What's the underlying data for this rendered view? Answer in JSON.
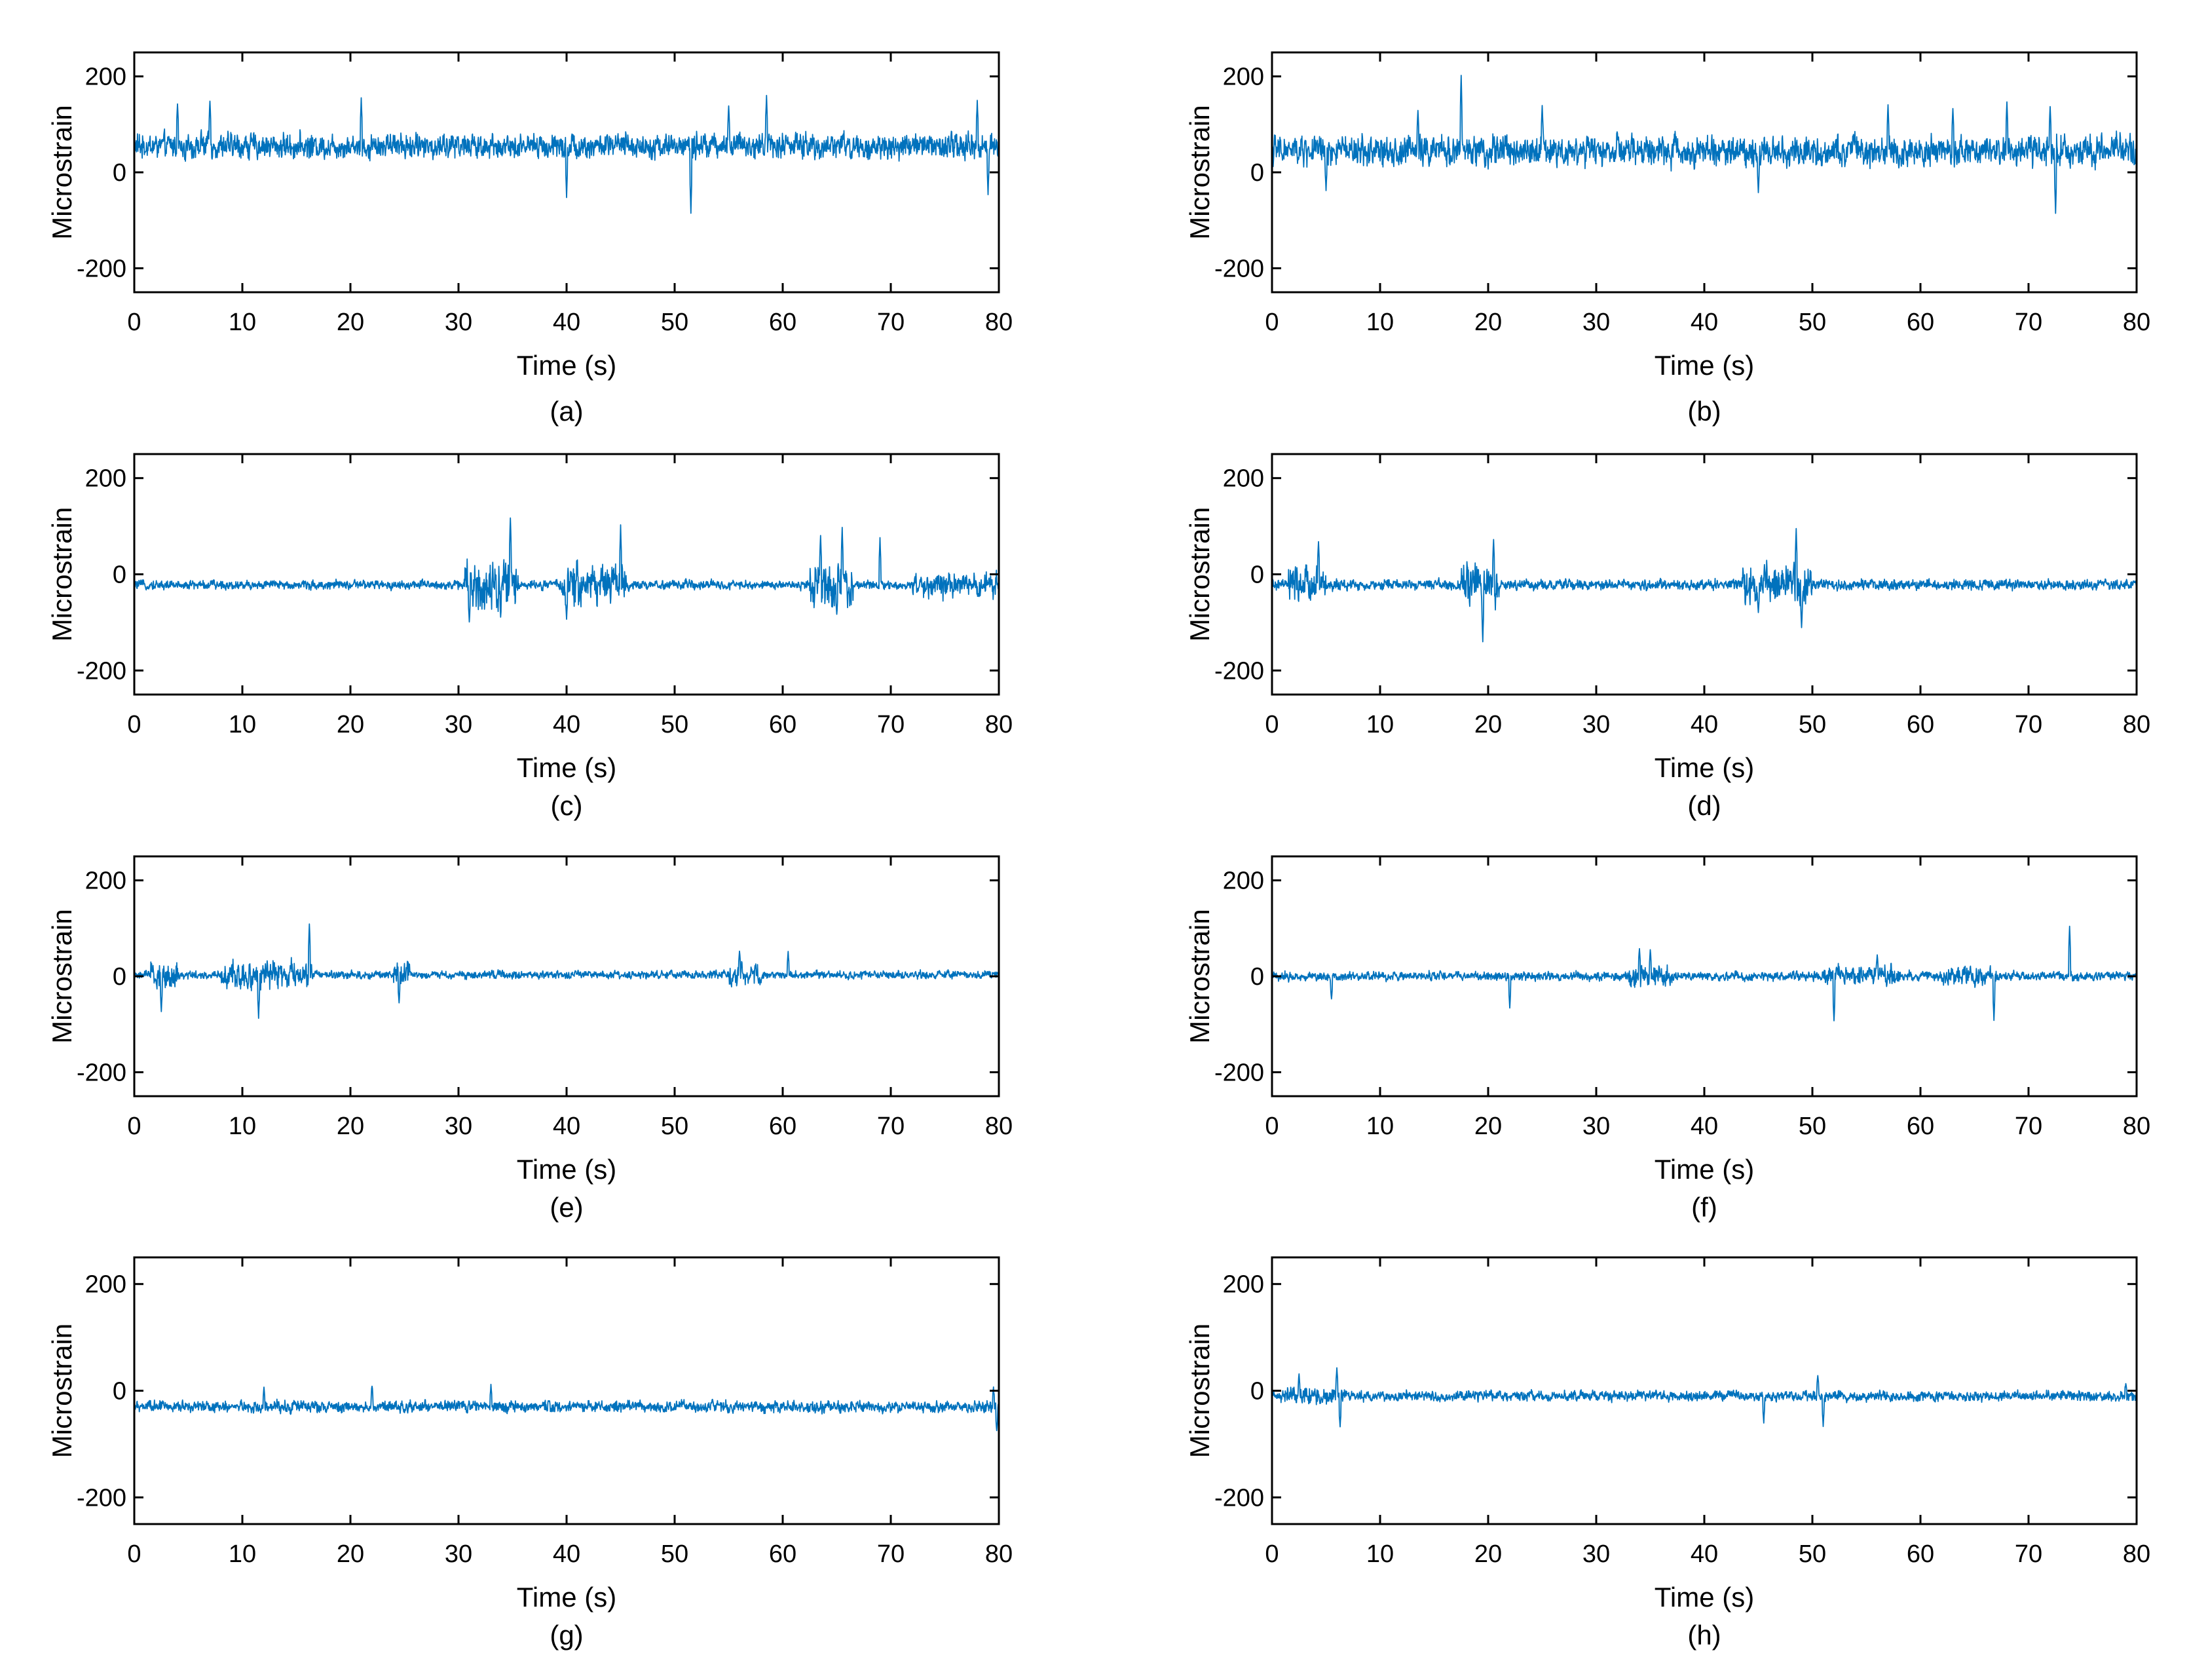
{
  "style": {
    "line_color": "#0072BD",
    "axes_color": "#000000",
    "background": "#ffffff"
  },
  "chart_data": [
    {
      "panel": "(a)",
      "type": "line",
      "xlabel": "Time (s)",
      "ylabel": "Microstrain",
      "xlim": [
        0,
        80
      ],
      "ylim": [
        -250,
        250
      ],
      "xticks": [
        0,
        10,
        20,
        30,
        40,
        50,
        60,
        70,
        80
      ],
      "yticks": [
        -200,
        0,
        200
      ],
      "series": [
        {
          "baseline": 55,
          "noise": 22,
          "peaks": [
            [
              4,
              145
            ],
            [
              7,
              150
            ],
            [
              21,
              155
            ],
            [
              40,
              -50
            ],
            [
              51.5,
              -85
            ],
            [
              55,
              140
            ],
            [
              58.5,
              160
            ],
            [
              78,
              150
            ],
            [
              79,
              -45
            ]
          ]
        }
      ]
    },
    {
      "panel": "(b)",
      "type": "line",
      "xlabel": "Time (s)",
      "ylabel": "Microstrain",
      "xlim": [
        0,
        80
      ],
      "ylim": [
        -250,
        250
      ],
      "xticks": [
        0,
        10,
        20,
        30,
        40,
        50,
        60,
        70,
        80
      ],
      "yticks": [
        -200,
        0,
        200
      ],
      "series": [
        {
          "baseline": 45,
          "noise": 26,
          "peaks": [
            [
              5,
              -40
            ],
            [
              13.5,
              130
            ],
            [
              17.5,
              205
            ],
            [
              25,
              140
            ],
            [
              45,
              -40
            ],
            [
              57,
              140
            ],
            [
              63,
              130
            ],
            [
              68,
              145
            ],
            [
              72,
              135
            ],
            [
              72.5,
              -85
            ]
          ]
        }
      ]
    },
    {
      "panel": "(c)",
      "type": "line",
      "xlabel": "Time (s)",
      "ylabel": "Microstrain",
      "xlim": [
        0,
        80
      ],
      "ylim": [
        -250,
        250
      ],
      "xticks": [
        0,
        10,
        20,
        30,
        40,
        50,
        60,
        70,
        80
      ],
      "yticks": [
        -200,
        0,
        200
      ],
      "series": [
        {
          "baseline": -22,
          "noise": 8,
          "bursts": [
            [
              30.5,
              35.5,
              45
            ],
            [
              39.5,
              45.5,
              35
            ],
            [
              62.5,
              66.5,
              35
            ],
            [
              72,
              80,
              22
            ]
          ],
          "peaks": [
            [
              34.8,
              120
            ],
            [
              31,
              -100
            ],
            [
              40,
              -95
            ],
            [
              45,
              100
            ],
            [
              63.5,
              80
            ],
            [
              65.5,
              100
            ],
            [
              65,
              -85
            ],
            [
              69,
              75
            ]
          ]
        }
      ]
    },
    {
      "panel": "(d)",
      "type": "line",
      "xlabel": "Time (s)",
      "ylabel": "Microstrain",
      "xlim": [
        0,
        80
      ],
      "ylim": [
        -250,
        250
      ],
      "xticks": [
        0,
        10,
        20,
        30,
        40,
        50,
        60,
        70,
        80
      ],
      "yticks": [
        -200,
        0,
        200
      ],
      "series": [
        {
          "baseline": -22,
          "noise": 9,
          "bursts": [
            [
              1.5,
              5,
              30
            ],
            [
              17.5,
              21,
              35
            ],
            [
              43.5,
              50,
              35
            ]
          ],
          "peaks": [
            [
              4.3,
              70
            ],
            [
              19.5,
              -140
            ],
            [
              20.5,
              75
            ],
            [
              48.5,
              95
            ],
            [
              49,
              -110
            ],
            [
              45,
              -80
            ]
          ]
        }
      ]
    },
    {
      "panel": "(e)",
      "type": "line",
      "xlabel": "Time (s)",
      "ylabel": "Microstrain",
      "xlim": [
        0,
        80
      ],
      "ylim": [
        -250,
        250
      ],
      "xticks": [
        0,
        10,
        20,
        30,
        40,
        50,
        60,
        70,
        80
      ],
      "yticks": [
        -200,
        0,
        200
      ],
      "series": [
        {
          "baseline": 3,
          "noise": 7,
          "bursts": [
            [
              1.5,
              4,
              25
            ],
            [
              8,
              16.5,
              25
            ],
            [
              24,
              25.5,
              25
            ],
            [
              55,
              58,
              20
            ]
          ],
          "peaks": [
            [
              16.2,
              110
            ],
            [
              11.5,
              -85
            ],
            [
              2.5,
              -75
            ],
            [
              24.5,
              -55
            ],
            [
              56,
              55
            ],
            [
              60.5,
              50
            ]
          ]
        }
      ]
    },
    {
      "panel": "(f)",
      "type": "line",
      "xlabel": "Time (s)",
      "ylabel": "Microstrain",
      "xlim": [
        0,
        80
      ],
      "ylim": [
        -250,
        250
      ],
      "xticks": [
        0,
        10,
        20,
        30,
        40,
        50,
        60,
        70,
        80
      ],
      "yticks": [
        -200,
        0,
        200
      ],
      "series": [
        {
          "baseline": 0,
          "noise": 8,
          "bursts": [
            [
              33,
              37,
              20
            ],
            [
              51,
              58,
              18
            ],
            [
              62,
              67,
              18
            ]
          ],
          "peaks": [
            [
              5.5,
              -50
            ],
            [
              22,
              -65
            ],
            [
              34,
              60
            ],
            [
              35,
              55
            ],
            [
              52,
              -95
            ],
            [
              56,
              45
            ],
            [
              66.8,
              -90
            ],
            [
              73.8,
              105
            ]
          ]
        }
      ]
    },
    {
      "panel": "(g)",
      "type": "line",
      "xlabel": "Time (s)",
      "ylabel": "Microstrain",
      "xlim": [
        0,
        80
      ],
      "ylim": [
        -250,
        250
      ],
      "xticks": [
        0,
        10,
        20,
        30,
        40,
        50,
        60,
        70,
        80
      ],
      "yticks": [
        -200,
        0,
        200
      ],
      "series": [
        {
          "baseline": -30,
          "noise": 9,
          "bursts": [],
          "peaks": [
            [
              12,
              5
            ],
            [
              22,
              10
            ],
            [
              33,
              10
            ],
            [
              79.5,
              5
            ],
            [
              79.8,
              -75
            ]
          ]
        }
      ]
    },
    {
      "panel": "(h)",
      "type": "line",
      "xlabel": "Time (s)",
      "ylabel": "Microstrain",
      "xlim": [
        0,
        80
      ],
      "ylim": [
        -250,
        250
      ],
      "xticks": [
        0,
        10,
        20,
        30,
        40,
        50,
        60,
        70,
        80
      ],
      "yticks": [
        -200,
        0,
        200
      ],
      "series": [
        {
          "baseline": -10,
          "noise": 8,
          "bursts": [
            [
              1,
              7,
              15
            ]
          ],
          "peaks": [
            [
              2.5,
              30
            ],
            [
              6,
              45
            ],
            [
              6.3,
              -70
            ],
            [
              45.5,
              -60
            ],
            [
              50.5,
              30
            ],
            [
              51,
              -65
            ],
            [
              79,
              15
            ]
          ]
        }
      ]
    }
  ]
}
